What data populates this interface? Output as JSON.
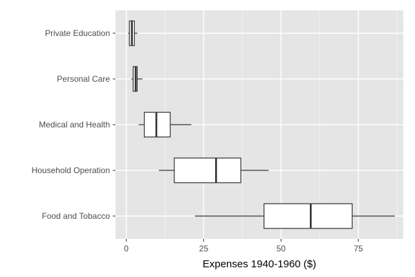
{
  "chart_data": {
    "type": "boxplot",
    "orientation": "horizontal",
    "xlabel": "Expenses 1940-1960 ($)",
    "ylabel": "",
    "xlim": [
      -3.5,
      89.5
    ],
    "x_ticks": [
      0,
      25,
      50,
      75
    ],
    "x_tick_labels": [
      "0",
      "25",
      "50",
      "75"
    ],
    "grid": true,
    "legend": "none",
    "categories": [
      "Private Education",
      "Personal Care",
      "Medical and Health",
      "Household Operation",
      "Food and Tobacco"
    ],
    "boxes": [
      {
        "category": "Private Education",
        "whisker_low": 0.6,
        "q1": 1.0,
        "median": 1.8,
        "q3": 2.6,
        "whisker_high": 3.6
      },
      {
        "category": "Personal Care",
        "whisker_low": 1.6,
        "q1": 2.2,
        "median": 3.0,
        "q3": 3.5,
        "whisker_high": 5.2
      },
      {
        "category": "Medical and Health",
        "whisker_low": 4.0,
        "q1": 5.8,
        "median": 9.7,
        "q3": 14.2,
        "whisker_high": 21.0
      },
      {
        "category": "Household Operation",
        "whisker_low": 10.5,
        "q1": 15.5,
        "median": 29.0,
        "q3": 37.0,
        "whisker_high": 46.0
      },
      {
        "category": "Food and Tobacco",
        "whisker_low": 22.2,
        "q1": 44.5,
        "median": 59.6,
        "q3": 73.0,
        "whisker_high": 86.8
      }
    ],
    "colors": {
      "panel_background": "#e5e5e5",
      "grid_major": "#ffffff",
      "grid_minor": "#f2f2f2",
      "box_fill": "#ffffff",
      "box_stroke": "#333333",
      "tick_label": "#4d4d4d"
    }
  }
}
